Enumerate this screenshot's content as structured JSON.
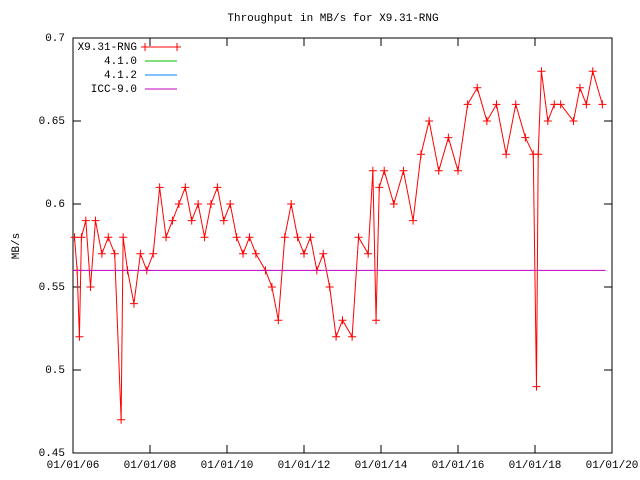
{
  "chart_data": {
    "type": "line",
    "title": "Throughput in MB/s for X9.31-RNG",
    "ylabel": "MB/s",
    "xlim": [
      "2006-01-01",
      "2020-01-01"
    ],
    "xticks": [
      {
        "value": "2006-01-01",
        "label": "01/01/06"
      },
      {
        "value": "2008-01-01",
        "label": "01/01/08"
      },
      {
        "value": "2010-01-01",
        "label": "01/01/10"
      },
      {
        "value": "2012-01-01",
        "label": "01/01/12"
      },
      {
        "value": "2014-01-01",
        "label": "01/01/14"
      },
      {
        "value": "2016-01-01",
        "label": "01/01/16"
      },
      {
        "value": "2018-01-01",
        "label": "01/01/18"
      },
      {
        "value": "2020-01-01",
        "label": "01/01/20"
      }
    ],
    "ylim": [
      0.45,
      0.7
    ],
    "yticks": [
      0.45,
      0.5,
      0.55,
      0.6,
      0.65,
      0.7
    ],
    "legend": "top-left",
    "series": [
      {
        "name": "X9.31-RNG",
        "color": "#ff0000",
        "markers": true,
        "x": [
          "2006-01-15",
          "2006-02-10",
          "2006-03-01",
          "2006-03-20",
          "2006-05-01",
          "2006-06-15",
          "2006-08-01",
          "2006-10-01",
          "2006-12-01",
          "2007-02-01",
          "2007-04-01",
          "2007-04-20",
          "2007-06-01",
          "2007-08-01",
          "2007-10-01",
          "2007-12-01",
          "2008-02-01",
          "2008-04-01",
          "2008-06-01",
          "2008-08-01",
          "2008-10-01",
          "2008-12-01",
          "2009-02-01",
          "2009-04-01",
          "2009-06-01",
          "2009-08-01",
          "2009-10-01",
          "2009-12-01",
          "2010-02-01",
          "2010-04-01",
          "2010-06-01",
          "2010-08-01",
          "2010-10-01",
          "2011-01-01",
          "2011-03-01",
          "2011-05-01",
          "2011-07-01",
          "2011-09-01",
          "2011-11-01",
          "2012-01-01",
          "2012-03-01",
          "2012-05-01",
          "2012-07-01",
          "2012-09-01",
          "2012-11-01",
          "2013-01-01",
          "2013-04-01",
          "2013-06-01",
          "2013-09-01",
          "2013-10-15",
          "2013-11-15",
          "2013-12-15",
          "2014-02-01",
          "2014-05-01",
          "2014-08-01",
          "2014-11-01",
          "2015-01-15",
          "2015-04-01",
          "2015-07-01",
          "2015-10-01",
          "2016-01-01",
          "2016-04-01",
          "2016-07-01",
          "2016-10-01",
          "2017-01-01",
          "2017-04-01",
          "2017-07-01",
          "2017-10-01",
          "2017-12-15",
          "2018-01-15",
          "2018-02-01",
          "2018-03-01",
          "2018-05-01",
          "2018-07-01",
          "2018-09-01",
          "2019-01-01",
          "2019-03-01",
          "2019-05-01",
          "2019-07-01",
          "2019-10-01"
        ],
        "values": [
          0.58,
          0.56,
          0.52,
          0.58,
          0.59,
          0.55,
          0.59,
          0.57,
          0.58,
          0.57,
          0.47,
          0.58,
          0.56,
          0.54,
          0.57,
          0.56,
          0.57,
          0.61,
          0.58,
          0.59,
          0.6,
          0.61,
          0.59,
          0.6,
          0.58,
          0.6,
          0.61,
          0.59,
          0.6,
          0.58,
          0.57,
          0.58,
          0.57,
          0.56,
          0.55,
          0.53,
          0.58,
          0.6,
          0.58,
          0.57,
          0.58,
          0.56,
          0.57,
          0.55,
          0.52,
          0.53,
          0.52,
          0.58,
          0.57,
          0.62,
          0.53,
          0.61,
          0.62,
          0.6,
          0.62,
          0.59,
          0.63,
          0.65,
          0.62,
          0.64,
          0.62,
          0.66,
          0.67,
          0.65,
          0.66,
          0.63,
          0.66,
          0.64,
          0.63,
          0.49,
          0.63,
          0.68,
          0.65,
          0.66,
          0.66,
          0.65,
          0.67,
          0.66,
          0.68,
          0.66
        ]
      },
      {
        "name": "4.1.0",
        "color": "#00c000",
        "x": [],
        "values": []
      },
      {
        "name": "4.1.2",
        "color": "#0080ff",
        "x": [],
        "values": []
      },
      {
        "name": "ICC-9.0",
        "color": "#c000c0",
        "x": [
          "2006-01-01",
          "2019-11-01"
        ],
        "values": [
          0.56,
          0.56
        ]
      }
    ]
  }
}
